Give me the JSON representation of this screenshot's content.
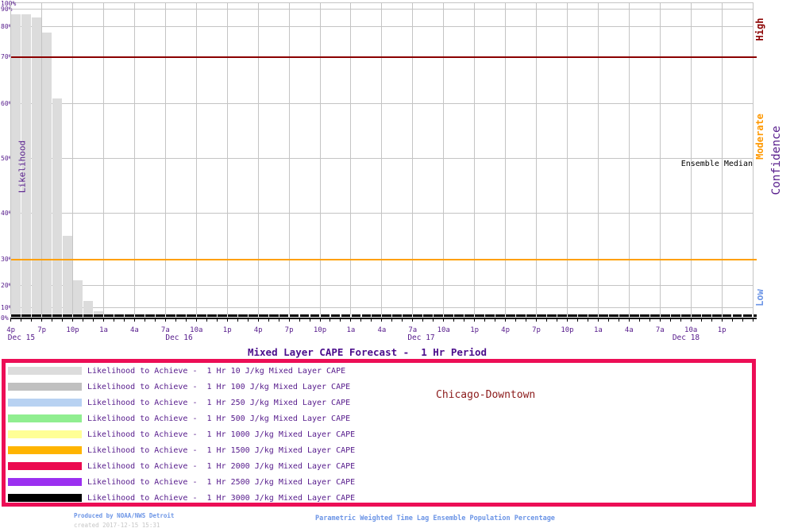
{
  "chart_data": {
    "type": "bar",
    "title": "Mixed Layer CAPE Forecast -  1 Hr Period",
    "location_label": "Chicago-Downtown",
    "ylabel": "Likelihood",
    "y_axis": {
      "scale": "nonlinear probability spacing (deciles compressed toward 0% and 100%)",
      "range_percent": [
        0,
        100
      ],
      "grid": true,
      "ticks": [
        {
          "label": "100%",
          "percent": 100
        },
        {
          "label": "90%",
          "percent": 90
        },
        {
          "label": "80%",
          "percent": 80
        },
        {
          "label": "70%",
          "percent": 70
        },
        {
          "label": "60%",
          "percent": 60
        },
        {
          "label": "50%",
          "percent": 50
        },
        {
          "label": "40%",
          "percent": 40
        },
        {
          "label": "30%",
          "percent": 30
        },
        {
          "label": "20%",
          "percent": 20
        },
        {
          "label": "10%",
          "percent": 10
        },
        {
          "label": "0%",
          "percent": 0
        }
      ]
    },
    "x_axis": {
      "tick_interval_hours": 3,
      "minor_tick_interval_hours": 1,
      "tick_labels": [
        "4p",
        "7p",
        "10p",
        "1a",
        "4a",
        "7a",
        "10a",
        "1p",
        "4p",
        "7p",
        "10p",
        "1a",
        "4a",
        "7a",
        "10a",
        "1p",
        "4p",
        "7p",
        "10p",
        "1a",
        "4a",
        "7a",
        "10a",
        "1p"
      ],
      "date_labels": [
        {
          "label": "Dec 15",
          "hour_offset": -0.3
        },
        {
          "label": "Dec 16",
          "hour_offset": 15
        },
        {
          "label": "Dec 17",
          "hour_offset": 38.5
        },
        {
          "label": "Dec 18",
          "hour_offset": 64.2
        }
      ]
    },
    "series": [
      {
        "name": "Likelihood to Achieve -  1 Hr 10 J/kg Mixed Layer CAPE",
        "color": "#DCDCDC",
        "hours": [
          "4p",
          "5p",
          "6p",
          "7p",
          "8p",
          "9p",
          "10p",
          "11p",
          "12a"
        ],
        "values_percent": [
          87,
          87,
          85,
          78,
          61,
          35,
          22,
          13,
          6
        ]
      },
      {
        "name": "Likelihood to Achieve -  1 Hr 100 J/kg Mixed Layer CAPE",
        "color": "#C0C0C0",
        "flat_at_zero": true
      },
      {
        "name": "Likelihood to Achieve -  1 Hr 250 J/kg Mixed Layer CAPE",
        "color": "#B8D2F2",
        "flat_at_zero": true
      },
      {
        "name": "Likelihood to Achieve -  1 Hr 500 J/kg Mixed Layer CAPE",
        "color": "#90EE90",
        "flat_at_zero": true
      },
      {
        "name": "Likelihood to Achieve -  1 Hr 1000 J/kg Mixed Layer CAPE",
        "color": "#FFFF96",
        "flat_at_zero": true
      },
      {
        "name": "Likelihood to Achieve -  1 Hr 1500 J/kg Mixed Layer CAPE",
        "color": "#FFB400",
        "flat_at_zero": true
      },
      {
        "name": "Likelihood to Achieve -  1 Hr 2000 J/kg Mixed Layer CAPE",
        "color": "#EB0A50",
        "flat_at_zero": true
      },
      {
        "name": "Likelihood to Achieve -  1 Hr 2500 J/kg Mixed Layer CAPE",
        "color": "#9B30F0",
        "flat_at_zero": true
      },
      {
        "name": "Likelihood to Achieve -  1 Hr 3000 J/kg Mixed Layer CAPE",
        "color": "#000000",
        "flat_at_zero": true
      }
    ],
    "reference_lines": [
      {
        "name": "high-confidence-threshold",
        "percent": 70,
        "color": "#8B0000"
      },
      {
        "name": "low-confidence-threshold",
        "percent": 30,
        "color": "#FFA000"
      }
    ],
    "annotations": [
      {
        "text": "Ensemble Median",
        "color": "#000000",
        "position": "right edge, just below 50% line"
      }
    ],
    "confidence_axis": {
      "label": "Confidence",
      "bands": [
        {
          "label": "High",
          "color": "#8B0000"
        },
        {
          "label": "Moderate",
          "color": "#FF9800"
        },
        {
          "label": "Low",
          "color": "#6C95E6"
        }
      ]
    }
  },
  "legend": {
    "border_color": "#EC0E56",
    "items": [
      {
        "color": "#DCDCDC",
        "label": "Likelihood to Achieve -  1 Hr 10 J/kg Mixed Layer CAPE"
      },
      {
        "color": "#C0C0C0",
        "label": "Likelihood to Achieve -  1 Hr 100 J/kg Mixed Layer CAPE"
      },
      {
        "color": "#B8D2F2",
        "label": "Likelihood to Achieve -  1 Hr 250 J/kg Mixed Layer CAPE"
      },
      {
        "color": "#90EE90",
        "label": "Likelihood to Achieve -  1 Hr 500 J/kg Mixed Layer CAPE"
      },
      {
        "color": "#FFFF96",
        "label": "Likelihood to Achieve -  1 Hr 1000 J/kg Mixed Layer CAPE"
      },
      {
        "color": "#FFB400",
        "label": "Likelihood to Achieve -  1 Hr 1500 J/kg Mixed Layer CAPE"
      },
      {
        "color": "#EB0A50",
        "label": "Likelihood to Achieve -  1 Hr 2000 J/kg Mixed Layer CAPE"
      },
      {
        "color": "#9B30F0",
        "label": "Likelihood to Achieve -  1 Hr 2500 J/kg Mixed Layer CAPE"
      },
      {
        "color": "#000000",
        "label": "Likelihood to Achieve -  1 Hr 3000 J/kg Mixed Layer CAPE"
      }
    ]
  },
  "footer": {
    "produced_by": "Produced by NOAA/NWS Detroit",
    "created": "created 2017-12-15 15:31",
    "note": "Parametric Weighted Time Lag Ensemble Population Percentage"
  }
}
